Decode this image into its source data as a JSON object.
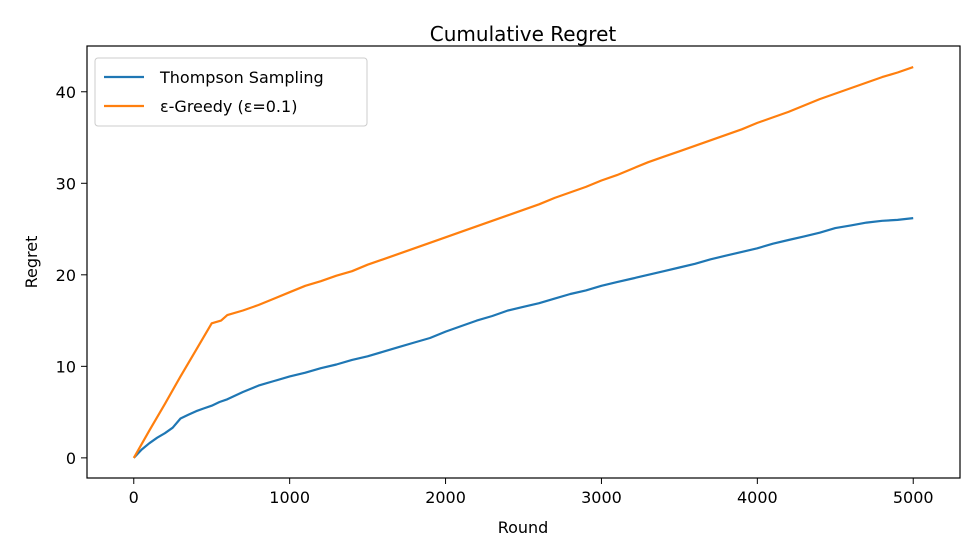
{
  "chart_data": {
    "type": "line",
    "title": "Cumulative Regret",
    "xlabel": "Round",
    "ylabel": "Regret",
    "xlim": [
      -300,
      5300
    ],
    "ylim": [
      -2.2,
      45
    ],
    "xticks": [
      0,
      1000,
      2000,
      3000,
      4000,
      5000
    ],
    "yticks": [
      0,
      10,
      20,
      30,
      40
    ],
    "legend_position": "top-left",
    "grid": false,
    "series": [
      {
        "name": "Thompson Sampling",
        "color": "#1f77b4",
        "points": [
          [
            0,
            0
          ],
          [
            50,
            0.9
          ],
          [
            100,
            1.6
          ],
          [
            150,
            2.2
          ],
          [
            200,
            2.7
          ],
          [
            250,
            3.3
          ],
          [
            300,
            4.3
          ],
          [
            350,
            4.7
          ],
          [
            400,
            5.1
          ],
          [
            450,
            5.4
          ],
          [
            500,
            5.7
          ],
          [
            550,
            6.1
          ],
          [
            600,
            6.4
          ],
          [
            700,
            7.2
          ],
          [
            800,
            7.9
          ],
          [
            900,
            8.4
          ],
          [
            1000,
            8.9
          ],
          [
            1100,
            9.3
          ],
          [
            1200,
            9.8
          ],
          [
            1300,
            10.2
          ],
          [
            1400,
            10.7
          ],
          [
            1500,
            11.1
          ],
          [
            1600,
            11.6
          ],
          [
            1700,
            12.1
          ],
          [
            1800,
            12.6
          ],
          [
            1900,
            13.1
          ],
          [
            2000,
            13.8
          ],
          [
            2100,
            14.4
          ],
          [
            2200,
            15.0
          ],
          [
            2300,
            15.5
          ],
          [
            2400,
            16.1
          ],
          [
            2500,
            16.5
          ],
          [
            2600,
            16.9
          ],
          [
            2700,
            17.4
          ],
          [
            2800,
            17.9
          ],
          [
            2900,
            18.3
          ],
          [
            3000,
            18.8
          ],
          [
            3100,
            19.2
          ],
          [
            3200,
            19.6
          ],
          [
            3300,
            20.0
          ],
          [
            3400,
            20.4
          ],
          [
            3500,
            20.8
          ],
          [
            3600,
            21.2
          ],
          [
            3700,
            21.7
          ],
          [
            3800,
            22.1
          ],
          [
            3900,
            22.5
          ],
          [
            4000,
            22.9
          ],
          [
            4100,
            23.4
          ],
          [
            4200,
            23.8
          ],
          [
            4300,
            24.2
          ],
          [
            4400,
            24.6
          ],
          [
            4500,
            25.1
          ],
          [
            4600,
            25.4
          ],
          [
            4700,
            25.7
          ],
          [
            4800,
            25.9
          ],
          [
            4900,
            26.0
          ],
          [
            5000,
            26.2
          ]
        ]
      },
      {
        "name": "ε-Greedy (ε=0.1)",
        "color": "#ff7f0e",
        "points": [
          [
            0,
            0
          ],
          [
            100,
            3.0
          ],
          [
            200,
            5.9
          ],
          [
            300,
            8.9
          ],
          [
            400,
            11.8
          ],
          [
            500,
            14.7
          ],
          [
            560,
            15.0
          ],
          [
            600,
            15.6
          ],
          [
            700,
            16.1
          ],
          [
            800,
            16.7
          ],
          [
            900,
            17.4
          ],
          [
            1000,
            18.1
          ],
          [
            1100,
            18.8
          ],
          [
            1200,
            19.3
          ],
          [
            1300,
            19.9
          ],
          [
            1400,
            20.4
          ],
          [
            1500,
            21.1
          ],
          [
            1600,
            21.7
          ],
          [
            1700,
            22.3
          ],
          [
            1800,
            22.9
          ],
          [
            1900,
            23.5
          ],
          [
            2000,
            24.1
          ],
          [
            2100,
            24.7
          ],
          [
            2200,
            25.3
          ],
          [
            2300,
            25.9
          ],
          [
            2400,
            26.5
          ],
          [
            2500,
            27.1
          ],
          [
            2600,
            27.7
          ],
          [
            2700,
            28.4
          ],
          [
            2800,
            29.0
          ],
          [
            2900,
            29.6
          ],
          [
            3000,
            30.3
          ],
          [
            3100,
            30.9
          ],
          [
            3200,
            31.6
          ],
          [
            3300,
            32.3
          ],
          [
            3400,
            32.9
          ],
          [
            3500,
            33.5
          ],
          [
            3600,
            34.1
          ],
          [
            3700,
            34.7
          ],
          [
            3800,
            35.3
          ],
          [
            3900,
            35.9
          ],
          [
            4000,
            36.6
          ],
          [
            4100,
            37.2
          ],
          [
            4200,
            37.8
          ],
          [
            4300,
            38.5
          ],
          [
            4400,
            39.2
          ],
          [
            4500,
            39.8
          ],
          [
            4600,
            40.4
          ],
          [
            4700,
            41.0
          ],
          [
            4800,
            41.6
          ],
          [
            4900,
            42.1
          ],
          [
            5000,
            42.7
          ]
        ]
      }
    ]
  }
}
